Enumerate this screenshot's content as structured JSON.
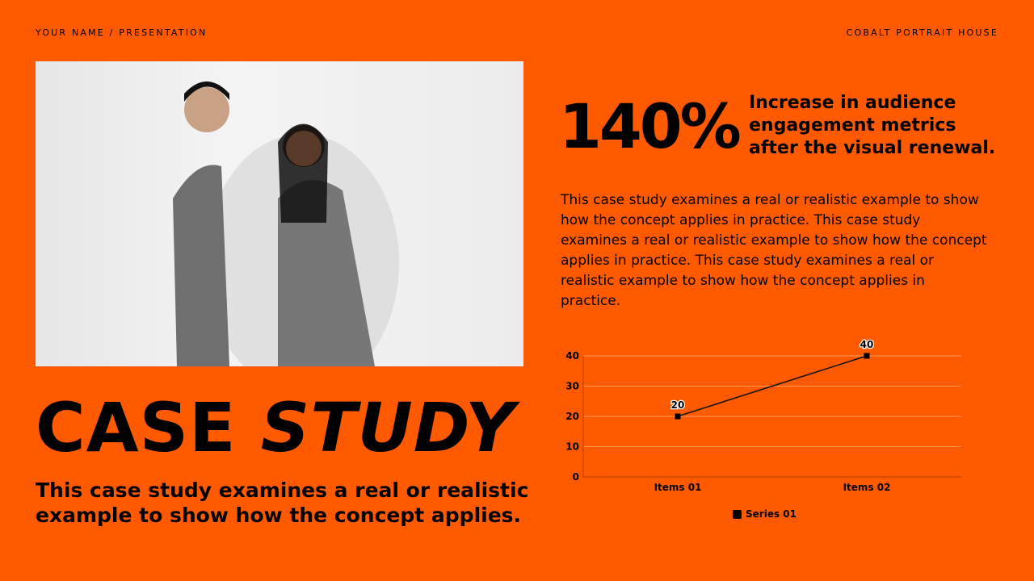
{
  "header": {
    "left": "YOUR NAME / PRESENTATION",
    "right": "COBALT PORTRAIT HOUSE"
  },
  "title": {
    "word1": "CASE",
    "word2": "STUDY"
  },
  "subtitle": "This case study examines a real or realistic example to show how the concept applies.",
  "stat": {
    "value": "140%",
    "description": "Increase in audience engagement metrics after the visual renewal."
  },
  "body": "This case study examines a real or realistic example to show how the concept applies in practice. This case study examines a real or realistic example to show how the concept applies in practice. This case study examines a real or realistic example to show how the concept applies in practice.",
  "colors": {
    "background": "#ff5a00",
    "text": "#000000",
    "gridline": "#ff9a5c"
  },
  "chart_data": {
    "type": "line",
    "categories": [
      "Items 01",
      "Items 02"
    ],
    "series": [
      {
        "name": "Series 01",
        "values": [
          20,
          40
        ],
        "labels": [
          "20",
          "40"
        ]
      }
    ],
    "yticks": [
      "0",
      "10",
      "20",
      "30",
      "40"
    ],
    "ylim": [
      0,
      40
    ],
    "grid": true,
    "legend": "bottom"
  }
}
